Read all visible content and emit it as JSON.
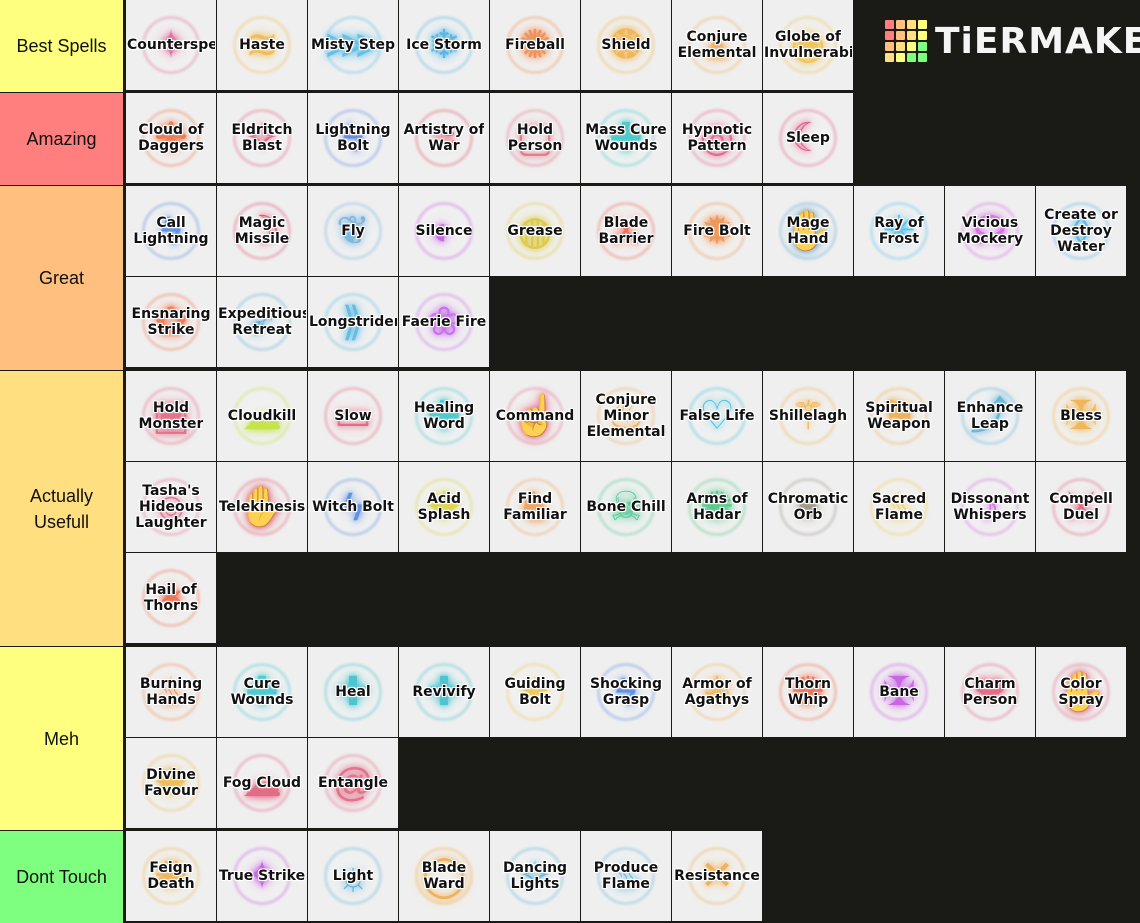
{
  "logo": {
    "text": "TiERMAKER",
    "grid_colors": [
      "#ff7f7f",
      "#ffbf7f",
      "#ffdf7f",
      "#ffff7f",
      "#ff7f7f",
      "#ffbf7f",
      "#ffdf7f",
      "#ffff7f",
      "#ffbf7f",
      "#ffdf7f",
      "#ffff7f",
      "#7fff7f",
      "#ffdf7f",
      "#ffff7f",
      "#7fff7f",
      "#7fff7f"
    ]
  },
  "tiers": [
    {
      "label": "Best Spells",
      "color": "#ffff7f",
      "spells": [
        {
          "name": "Counterspel",
          "color": "#e0508a",
          "icon": "✦"
        },
        {
          "name": "Haste",
          "color": "#f0b030",
          "icon": "≋"
        },
        {
          "name": "Misty Step",
          "color": "#3cb4e6",
          "icon": "⋙"
        },
        {
          "name": "Ice Storm",
          "color": "#30a8e0",
          "icon": "❄"
        },
        {
          "name": "Fireball",
          "color": "#f07830",
          "icon": "✺"
        },
        {
          "name": "Shield",
          "color": "#f0a830",
          "icon": "❂"
        },
        {
          "name": "Conjure\nElemental",
          "color": "#f0a040",
          "icon": "▲"
        },
        {
          "name": "Globe of\nInvulnerabili",
          "color": "#f0b830",
          "icon": "◉"
        }
      ]
    },
    {
      "label": "Amazing",
      "color": "#ff7f7f",
      "spells": [
        {
          "name": "Cloud of\nDaggers",
          "color": "#f05a28",
          "icon": "❋"
        },
        {
          "name": "Eldritch\nBlast",
          "color": "#e04060",
          "icon": "✧"
        },
        {
          "name": "Lightning\nBolt",
          "color": "#4070e0",
          "icon": "ϟ"
        },
        {
          "name": "Artistry of\nWar",
          "color": "#e03048",
          "icon": "≈"
        },
        {
          "name": "Hold\nPerson",
          "color": "#e05a70",
          "icon": "▢"
        },
        {
          "name": "Mass Cure\nWounds",
          "color": "#20c0c0",
          "icon": "✚"
        },
        {
          "name": "Hypnotic\nPattern",
          "color": "#e04878",
          "icon": "◎"
        },
        {
          "name": "Sleep",
          "color": "#e04070",
          "icon": "☾"
        }
      ]
    },
    {
      "label": "Great",
      "color": "#ffbf7f",
      "spells": [
        {
          "name": "Call\nLightning",
          "color": "#3878e0",
          "icon": "ϟ"
        },
        {
          "name": "Magic\nMissile",
          "color": "#e03050",
          "icon": "☽"
        },
        {
          "name": "Fly",
          "color": "#60a8d8",
          "icon": "❦"
        },
        {
          "name": "Silence",
          "color": "#c040e0",
          "icon": "◐"
        },
        {
          "name": "Grease",
          "color": "#d8c020",
          "icon": "◍"
        },
        {
          "name": "Blade\nBarrier",
          "color": "#f04830",
          "icon": "⚔"
        },
        {
          "name": "Fire Bolt",
          "color": "#f08030",
          "icon": "✹"
        },
        {
          "name": "Mage Hand",
          "color": "#50a0d0",
          "icon": "✋"
        },
        {
          "name": "Ray of\nFrost",
          "color": "#30b8f0",
          "icon": "✳"
        },
        {
          "name": "Vicious\nMockery",
          "color": "#d050e0",
          "icon": "☊"
        },
        {
          "name": "Create or\nDestroy\nWater",
          "color": "#30a8e0",
          "icon": "◊"
        },
        {
          "name": "Ensnaring\nStrike",
          "color": "#f05828",
          "icon": "✿"
        },
        {
          "name": "Expeditious\nRetreat",
          "color": "#40a0d0",
          "icon": "➶"
        },
        {
          "name": "Longstrider",
          "color": "#40b0e0",
          "icon": "⟫"
        },
        {
          "name": "Faerie Fire",
          "color": "#c050e8",
          "icon": "❀"
        }
      ]
    },
    {
      "label": "Actually\nUsefull",
      "color": "#ffdf7f",
      "spells": [
        {
          "name": "Hold\nMonster",
          "color": "#e05070",
          "icon": "▣"
        },
        {
          "name": "Cloudkill",
          "color": "#b8e020",
          "icon": "☁"
        },
        {
          "name": "Slow",
          "color": "#e04868",
          "icon": "▭"
        },
        {
          "name": "Healing\nWord",
          "color": "#20c0c8",
          "icon": "✚"
        },
        {
          "name": "Command",
          "color": "#e85878",
          "icon": "☝"
        },
        {
          "name": "Conjure\nMinor\nElemental",
          "color": "#f0a040",
          "icon": "♨"
        },
        {
          "name": "False Life",
          "color": "#20b8d8",
          "icon": "♡"
        },
        {
          "name": "Shillelagh",
          "color": "#f0a830",
          "icon": "⚚"
        },
        {
          "name": "Spiritual\nWeapon",
          "color": "#f0a030",
          "icon": "⚑"
        },
        {
          "name": "Enhance\nLeap",
          "color": "#40a8d8",
          "icon": "⤴"
        },
        {
          "name": "Bless",
          "color": "#f0a830",
          "icon": "✠"
        },
        {
          "name": "Tasha's\nHideous\nLaughter",
          "color": "#e05878",
          "icon": "☺"
        },
        {
          "name": "Telekinesis",
          "color": "#e04860",
          "icon": "✋"
        },
        {
          "name": "Witch Bolt",
          "color": "#3878e0",
          "icon": "ϟ"
        },
        {
          "name": "Acid\nSplash",
          "color": "#d8d020",
          "icon": "✸"
        },
        {
          "name": "Find\nFamiliar",
          "color": "#f09040",
          "icon": "♞"
        },
        {
          "name": "Bone Chill",
          "color": "#30c080",
          "icon": "☠"
        },
        {
          "name": "Arms of\nHadar",
          "color": "#30c070",
          "icon": "✺"
        },
        {
          "name": "Chromatic\nOrb",
          "color": "#8a8070",
          "icon": "●"
        },
        {
          "name": "Sacred\nFlame",
          "color": "#f0c030",
          "icon": "♨"
        },
        {
          "name": "Dissonant\nWhispers",
          "color": "#d050e0",
          "icon": "♪"
        },
        {
          "name": "Compell\nDuel",
          "color": "#e04060",
          "icon": "⚔"
        },
        {
          "name": "Hail of\nThorns",
          "color": "#f05028",
          "icon": "✶"
        }
      ]
    },
    {
      "label": "Meh",
      "color": "#ffff7f",
      "spells": [
        {
          "name": "Burning\nHands",
          "color": "#f07830",
          "icon": "♨"
        },
        {
          "name": "Cure\nWounds",
          "color": "#20c0c8",
          "icon": "✚"
        },
        {
          "name": "Heal",
          "color": "#20b8c8",
          "icon": "✚"
        },
        {
          "name": "Revivify",
          "color": "#20b8c8",
          "icon": "✚"
        },
        {
          "name": "Guiding\nBolt",
          "color": "#f0c030",
          "icon": "✦"
        },
        {
          "name": "Shocking\nGrasp",
          "color": "#3878e0",
          "icon": "ϟ"
        },
        {
          "name": "Armor of\nAgathys",
          "color": "#f0a840",
          "icon": "❄"
        },
        {
          "name": "Thorn Whip",
          "color": "#f05028",
          "icon": "✺"
        },
        {
          "name": "Bane",
          "color": "#c040e0",
          "icon": "✠"
        },
        {
          "name": "Charm\nPerson",
          "color": "#e04868",
          "icon": "❤"
        },
        {
          "name": "Color\nSpray",
          "color": "#e05878",
          "icon": "✋"
        },
        {
          "name": "Divine\nFavour",
          "color": "#f0b030",
          "icon": "✹"
        },
        {
          "name": "Fog Cloud",
          "color": "#e04868",
          "icon": "☁"
        },
        {
          "name": "Entangle",
          "color": "#e05070",
          "icon": "@"
        }
      ]
    },
    {
      "label": "Dont Touch",
      "color": "#7fff7f",
      "spells": [
        {
          "name": "Feign\nDeath",
          "color": "#f0a830",
          "icon": "✺"
        },
        {
          "name": "True Strike",
          "color": "#c040e0",
          "icon": "✦"
        },
        {
          "name": "Light",
          "color": "#40a8d8",
          "icon": "☼"
        },
        {
          "name": "Blade Ward",
          "color": "#f0a030",
          "icon": "◯"
        },
        {
          "name": "Dancing\nLights",
          "color": "#40a8d8",
          "icon": "✧"
        },
        {
          "name": "Produce\nFlame",
          "color": "#40a8d8",
          "icon": "♨"
        },
        {
          "name": "Resistance",
          "color": "#f0a030",
          "icon": "✕"
        }
      ]
    }
  ]
}
